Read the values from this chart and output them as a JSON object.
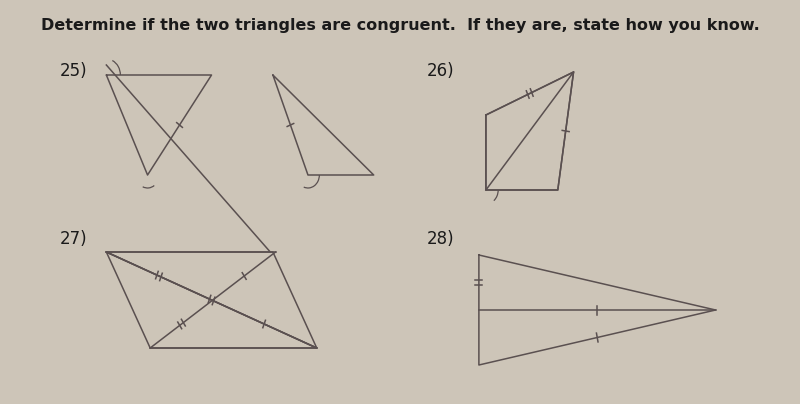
{
  "bg_color": "#cdc5b8",
  "title": "Determine if the two triangles are congruent.  If they are, state how you know.",
  "line_color": "#5a5050",
  "text_color": "#1a1a1a",
  "title_fontsize": 11.5,
  "label_fontsize": 12
}
